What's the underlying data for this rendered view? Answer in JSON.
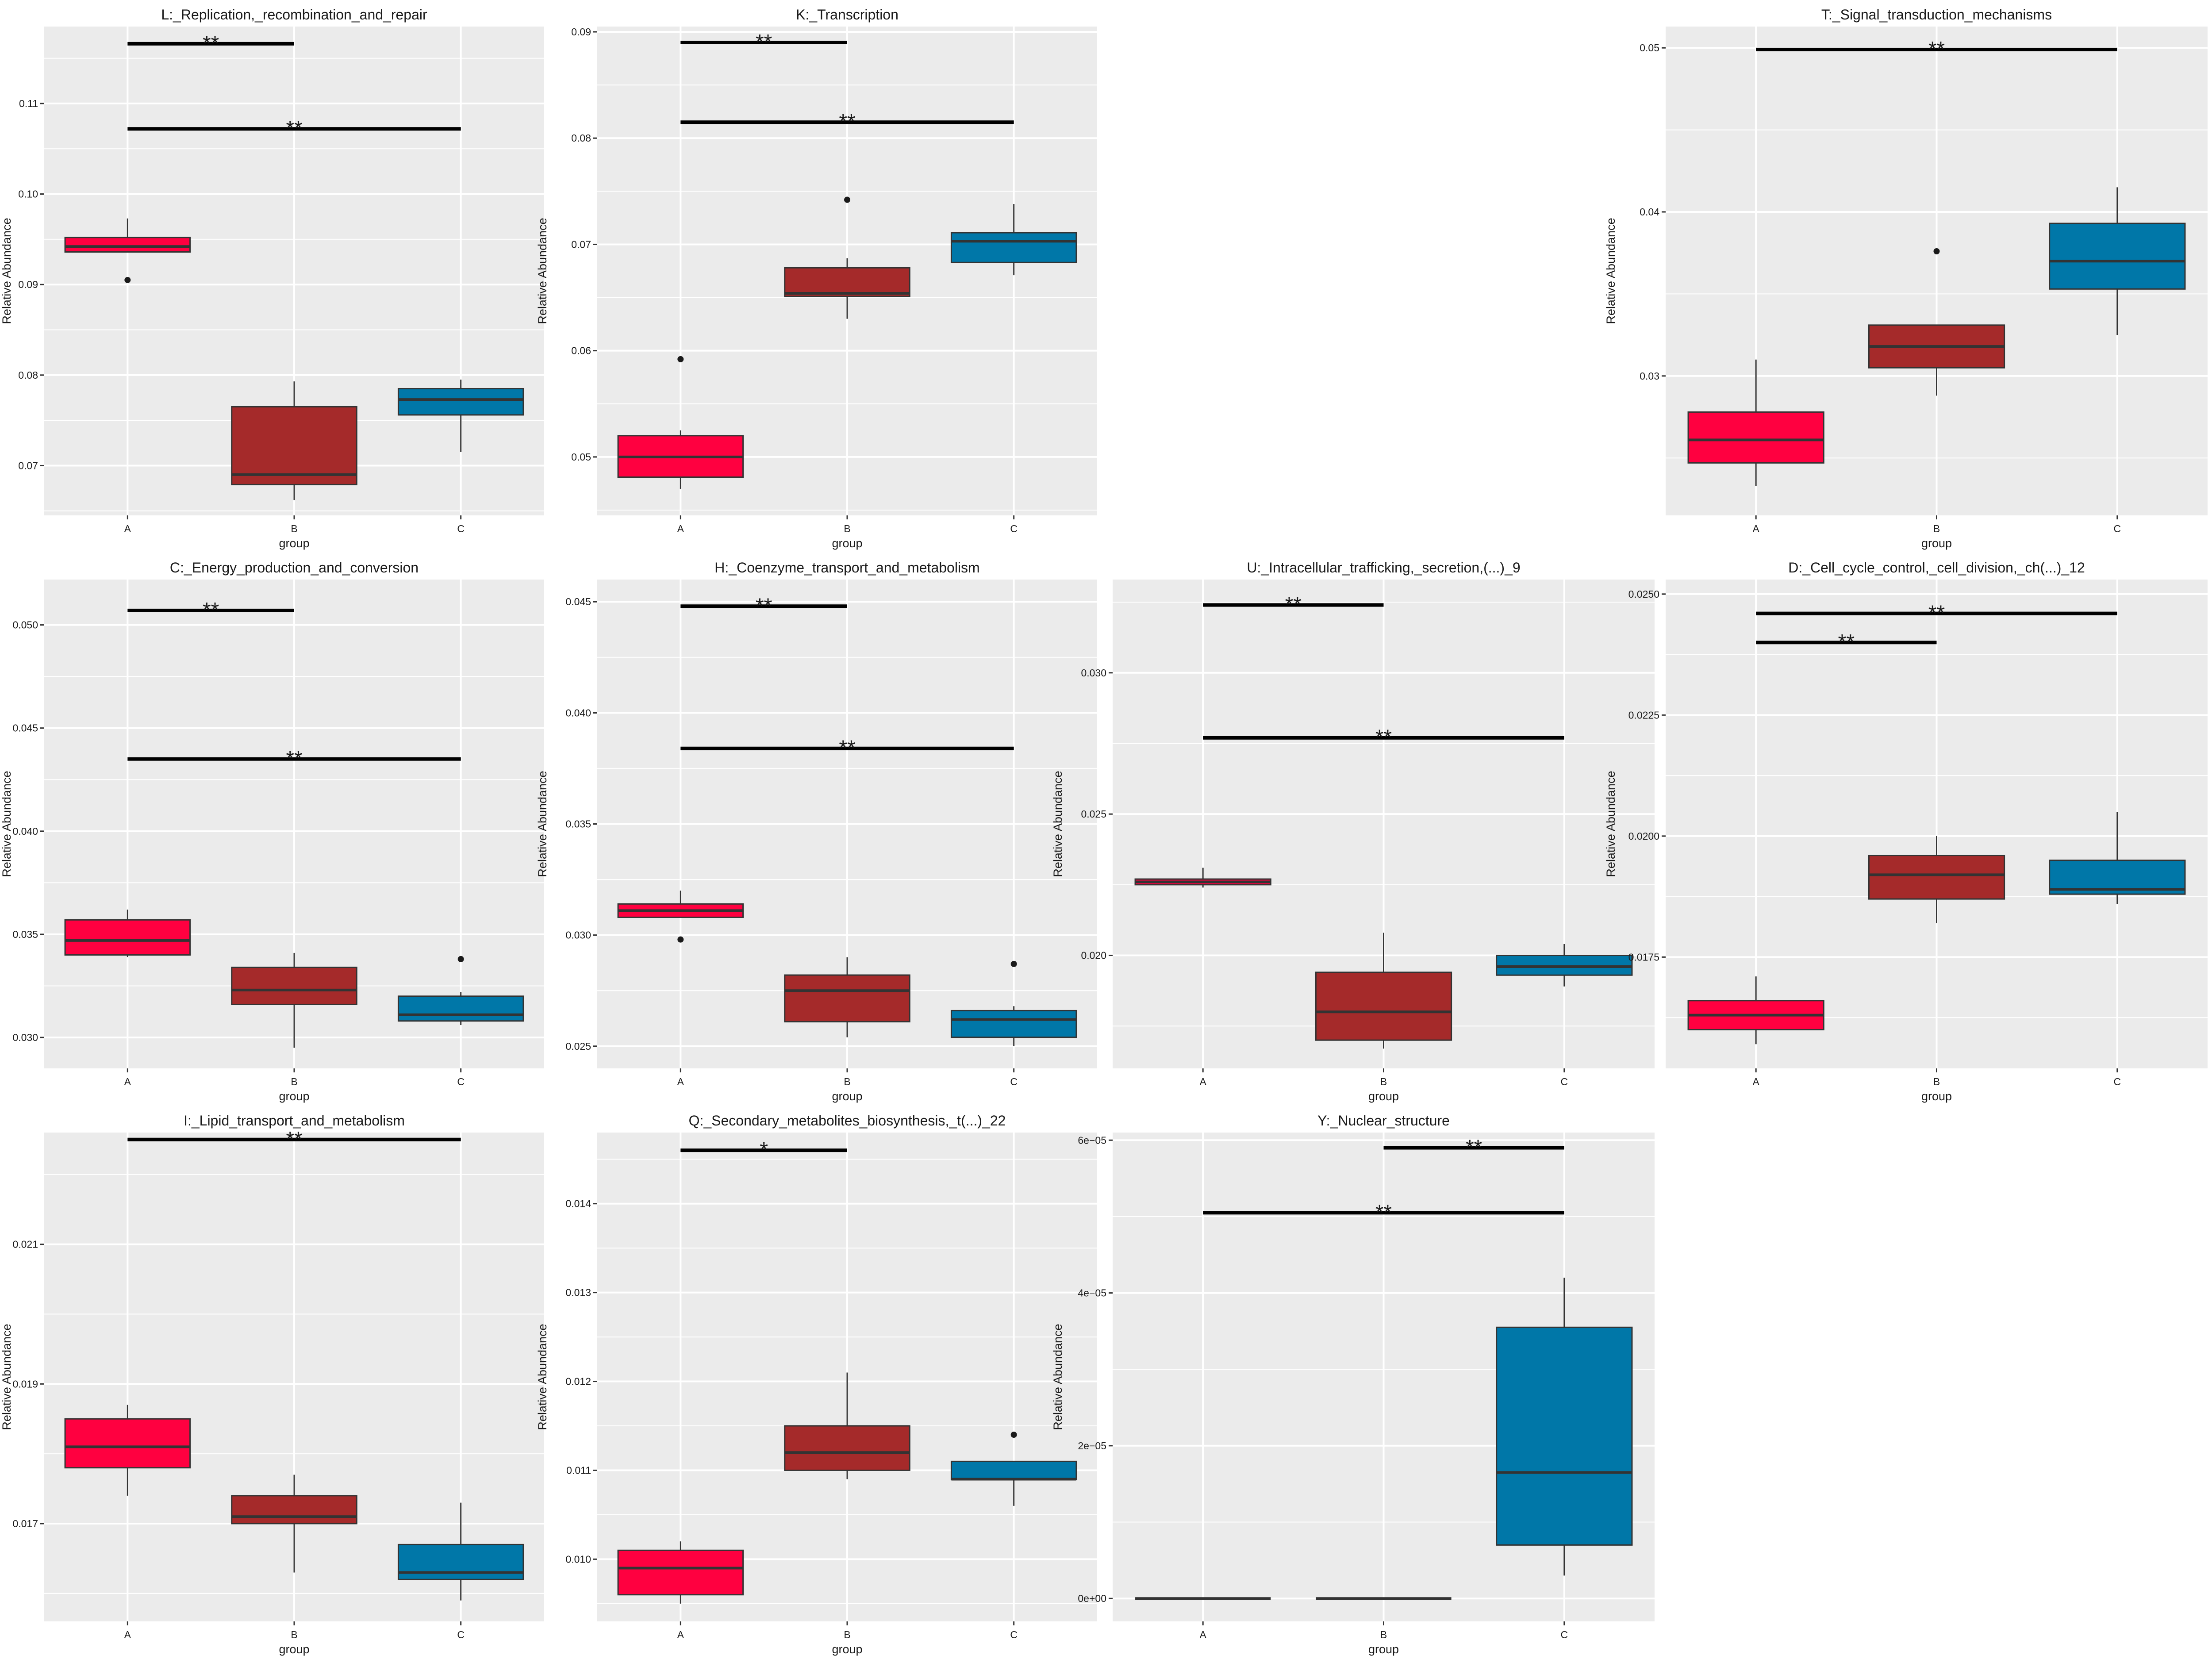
{
  "colors": {
    "A": "#ff0040",
    "B": "#a52a2a",
    "C": "#0077a8",
    "panel_bg": "#ebebeb",
    "grid": "#ffffff",
    "line": "#333333"
  },
  "chart_data": [
    {
      "type": "box",
      "title": "L:_Replication,_recombination_and_repair",
      "xlabel": "group",
      "ylabel": "Relative Abundance",
      "categories": [
        "A",
        "B",
        "C"
      ],
      "ylim": [
        0.0645,
        0.1185
      ],
      "yticks": [
        0.07,
        0.08,
        0.09,
        0.1,
        0.11
      ],
      "ytick_labels": [
        "0.07",
        "0.08",
        "0.09",
        "0.10",
        "0.11"
      ],
      "boxes": [
        {
          "group": "A",
          "lower": 0.0936,
          "q1": 0.0936,
          "median": 0.0942,
          "q3": 0.0952,
          "upper": 0.0973,
          "outliers": [
            0.0905
          ]
        },
        {
          "group": "B",
          "lower": 0.0662,
          "q1": 0.0679,
          "median": 0.069,
          "q3": 0.0765,
          "upper": 0.0793,
          "outliers": []
        },
        {
          "group": "C",
          "lower": 0.0715,
          "q1": 0.0756,
          "median": 0.0773,
          "q3": 0.0785,
          "upper": 0.0795,
          "outliers": []
        }
      ],
      "brackets": [
        {
          "from": "A",
          "to": "B",
          "y": 0.1166,
          "label": "**"
        },
        {
          "from": "A",
          "to": "C",
          "y": 0.1072,
          "label": "**"
        }
      ]
    },
    {
      "type": "box",
      "title": "K:_Transcription",
      "xlabel": "group",
      "ylabel": "Relative Abundance",
      "categories": [
        "A",
        "B",
        "C"
      ],
      "ylim": [
        0.0445,
        0.0905
      ],
      "yticks": [
        0.05,
        0.06,
        0.07,
        0.08,
        0.09
      ],
      "ytick_labels": [
        "0.05",
        "0.06",
        "0.07",
        "0.08",
        "0.09"
      ],
      "boxes": [
        {
          "group": "A",
          "lower": 0.047,
          "q1": 0.0481,
          "median": 0.05,
          "q3": 0.052,
          "upper": 0.0525,
          "outliers": [
            0.0592
          ]
        },
        {
          "group": "B",
          "lower": 0.063,
          "q1": 0.0651,
          "median": 0.0654,
          "q3": 0.0678,
          "upper": 0.0687,
          "outliers": [
            0.0742
          ]
        },
        {
          "group": "C",
          "lower": 0.0671,
          "q1": 0.0683,
          "median": 0.0703,
          "q3": 0.0711,
          "upper": 0.0738,
          "outliers": []
        }
      ],
      "brackets": [
        {
          "from": "A",
          "to": "B",
          "y": 0.089,
          "label": "**"
        },
        {
          "from": "A",
          "to": "C",
          "y": 0.0815,
          "label": "**"
        }
      ]
    },
    {
      "type": "box",
      "title": "T:_Signal_transduction_mechanisms",
      "xlabel": "group",
      "ylabel": "Relative Abundance",
      "categories": [
        "A",
        "B",
        "C"
      ],
      "ylim": [
        0.0215,
        0.0513
      ],
      "yticks": [
        0.03,
        0.04,
        0.05
      ],
      "ytick_labels": [
        "0.03",
        "0.04",
        "0.05"
      ],
      "boxes": [
        {
          "group": "A",
          "lower": 0.0233,
          "q1": 0.0247,
          "median": 0.0261,
          "q3": 0.0278,
          "upper": 0.031,
          "outliers": []
        },
        {
          "group": "B",
          "lower": 0.0288,
          "q1": 0.0305,
          "median": 0.0318,
          "q3": 0.0331,
          "upper": 0.0331,
          "outliers": [
            0.0376
          ]
        },
        {
          "group": "C",
          "lower": 0.0325,
          "q1": 0.0353,
          "median": 0.037,
          "q3": 0.0393,
          "upper": 0.0415,
          "outliers": []
        }
      ],
      "brackets": [
        {
          "from": "A",
          "to": "C",
          "y": 0.0499,
          "label": "**"
        }
      ]
    },
    {
      "type": "box",
      "title": "C:_Energy_production_and_conversion",
      "xlabel": "group",
      "ylabel": "Relative Abundance",
      "categories": [
        "A",
        "B",
        "C"
      ],
      "ylim": [
        0.0285,
        0.0522
      ],
      "yticks": [
        0.03,
        0.035,
        0.04,
        0.045,
        0.05
      ],
      "ytick_labels": [
        "0.030",
        "0.035",
        "0.040",
        "0.045",
        "0.050"
      ],
      "boxes": [
        {
          "group": "A",
          "lower": 0.0339,
          "q1": 0.034,
          "median": 0.0347,
          "q3": 0.0357,
          "upper": 0.0362,
          "outliers": []
        },
        {
          "group": "B",
          "lower": 0.0295,
          "q1": 0.0316,
          "median": 0.0323,
          "q3": 0.0334,
          "upper": 0.0341,
          "outliers": []
        },
        {
          "group": "C",
          "lower": 0.0306,
          "q1": 0.0308,
          "median": 0.0311,
          "q3": 0.032,
          "upper": 0.0322,
          "outliers": [
            0.0338
          ]
        }
      ],
      "brackets": [
        {
          "from": "A",
          "to": "B",
          "y": 0.0507,
          "label": "**"
        },
        {
          "from": "A",
          "to": "C",
          "y": 0.0435,
          "label": "**"
        }
      ]
    },
    {
      "type": "box",
      "title": "H:_Coenzyme_transport_and_metabolism",
      "xlabel": "group",
      "ylabel": "Relative Abundance",
      "categories": [
        "A",
        "B",
        "C"
      ],
      "ylim": [
        0.024,
        0.046
      ],
      "yticks": [
        0.025,
        0.03,
        0.035,
        0.04,
        0.045
      ],
      "ytick_labels": [
        "0.025",
        "0.030",
        "0.035",
        "0.040",
        "0.045"
      ],
      "boxes": [
        {
          "group": "A",
          "lower": 0.0308,
          "q1": 0.0308,
          "median": 0.0311,
          "q3": 0.0314,
          "upper": 0.032,
          "outliers": [
            0.0298
          ]
        },
        {
          "group": "B",
          "lower": 0.0254,
          "q1": 0.0261,
          "median": 0.0275,
          "q3": 0.0282,
          "upper": 0.029,
          "outliers": []
        },
        {
          "group": "C",
          "lower": 0.025,
          "q1": 0.0254,
          "median": 0.0262,
          "q3": 0.0266,
          "upper": 0.0268,
          "outliers": [
            0.0287
          ]
        }
      ],
      "brackets": [
        {
          "from": "A",
          "to": "B",
          "y": 0.0448,
          "label": "**"
        },
        {
          "from": "A",
          "to": "C",
          "y": 0.0384,
          "label": "**"
        }
      ]
    },
    {
      "type": "box",
      "title": "U:_Intracellular_trafficking,_secretion,(...)_9",
      "xlabel": "group",
      "ylabel": "Relative Abundance",
      "categories": [
        "A",
        "B",
        "C"
      ],
      "ylim": [
        0.016,
        0.0333
      ],
      "yticks": [
        0.02,
        0.025,
        0.03
      ],
      "ytick_labels": [
        "0.020",
        "0.025",
        "0.030"
      ],
      "boxes": [
        {
          "group": "A",
          "lower": 0.0224,
          "q1": 0.0225,
          "median": 0.0226,
          "q3": 0.0227,
          "upper": 0.0231,
          "outliers": []
        },
        {
          "group": "B",
          "lower": 0.0167,
          "q1": 0.017,
          "median": 0.018,
          "q3": 0.0194,
          "upper": 0.0208,
          "outliers": []
        },
        {
          "group": "C",
          "lower": 0.0189,
          "q1": 0.0193,
          "median": 0.0196,
          "q3": 0.02,
          "upper": 0.0204,
          "outliers": []
        }
      ],
      "brackets": [
        {
          "from": "A",
          "to": "B",
          "y": 0.0324,
          "label": "**"
        },
        {
          "from": "A",
          "to": "C",
          "y": 0.0277,
          "label": "**"
        }
      ]
    },
    {
      "type": "box",
      "title": "D:_Cell_cycle_control,_cell_division,_ch(...)_12",
      "xlabel": "group",
      "ylabel": "Relative Abundance",
      "categories": [
        "A",
        "B",
        "C"
      ],
      "ylim": [
        0.0152,
        0.0253
      ],
      "yticks": [
        0.0175,
        0.02,
        0.0225,
        0.025
      ],
      "ytick_labels": [
        "0.0175",
        "0.0200",
        "0.0225",
        "0.0250"
      ],
      "boxes": [
        {
          "group": "A",
          "lower": 0.0157,
          "q1": 0.016,
          "median": 0.0163,
          "q3": 0.0166,
          "upper": 0.0171,
          "outliers": []
        },
        {
          "group": "B",
          "lower": 0.0182,
          "q1": 0.0187,
          "median": 0.0192,
          "q3": 0.0196,
          "upper": 0.02,
          "outliers": []
        },
        {
          "group": "C",
          "lower": 0.0186,
          "q1": 0.0188,
          "median": 0.0189,
          "q3": 0.0195,
          "upper": 0.0205,
          "outliers": []
        }
      ],
      "brackets": [
        {
          "from": "A",
          "to": "C",
          "y": 0.0246,
          "label": "**"
        },
        {
          "from": "A",
          "to": "B",
          "y": 0.024,
          "label": "**"
        }
      ]
    },
    {
      "type": "box",
      "title": "I:_Lipid_transport_and_metabolism",
      "xlabel": "group",
      "ylabel": "Relative Abundance",
      "categories": [
        "A",
        "B",
        "C"
      ],
      "ylim": [
        0.0156,
        0.0226
      ],
      "yticks": [
        0.017,
        0.019,
        0.021
      ],
      "ytick_labels": [
        "0.017",
        "0.019",
        "0.021"
      ],
      "boxes": [
        {
          "group": "A",
          "lower": 0.0174,
          "q1": 0.0178,
          "median": 0.0181,
          "q3": 0.0185,
          "upper": 0.0187,
          "outliers": []
        },
        {
          "group": "B",
          "lower": 0.0163,
          "q1": 0.017,
          "median": 0.0171,
          "q3": 0.0174,
          "upper": 0.0177,
          "outliers": []
        },
        {
          "group": "C",
          "lower": 0.0159,
          "q1": 0.0162,
          "median": 0.0163,
          "q3": 0.0167,
          "upper": 0.0173,
          "outliers": []
        }
      ],
      "brackets": [
        {
          "from": "A",
          "to": "C",
          "y": 0.0225,
          "label": "**"
        }
      ]
    },
    {
      "type": "box",
      "title": "Q:_Secondary_metabolites_biosynthesis,_t(...)_22",
      "xlabel": "group",
      "ylabel": "Relative Abundance",
      "categories": [
        "A",
        "B",
        "C"
      ],
      "ylim": [
        0.0093,
        0.0148
      ],
      "yticks": [
        0.01,
        0.011,
        0.012,
        0.013,
        0.014
      ],
      "ytick_labels": [
        "0.010",
        "0.011",
        "0.012",
        "0.013",
        "0.014"
      ],
      "boxes": [
        {
          "group": "A",
          "lower": 0.0095,
          "q1": 0.0096,
          "median": 0.0099,
          "q3": 0.0101,
          "upper": 0.0102,
          "outliers": []
        },
        {
          "group": "B",
          "lower": 0.0109,
          "q1": 0.011,
          "median": 0.0112,
          "q3": 0.0115,
          "upper": 0.0121,
          "outliers": []
        },
        {
          "group": "C",
          "lower": 0.0106,
          "q1": 0.0109,
          "median": 0.0109,
          "q3": 0.0111,
          "upper": 0.0111,
          "outliers": [
            0.0114
          ]
        }
      ],
      "brackets": [
        {
          "from": "A",
          "to": "B",
          "y": 0.0146,
          "label": "*"
        }
      ]
    },
    {
      "type": "box",
      "title": "Y:_Nuclear_structure",
      "xlabel": "group",
      "ylabel": "Relative Abundance",
      "categories": [
        "A",
        "B",
        "C"
      ],
      "ylim": [
        -3e-06,
        6.1e-05
      ],
      "yticks": [
        0,
        2e-05,
        4e-05,
        6e-05
      ],
      "ytick_labels": [
        "0e+00",
        "2e−05",
        "4e−05",
        "6e−05"
      ],
      "boxes": [
        {
          "group": "A",
          "lower": 0,
          "q1": 0,
          "median": 0,
          "q3": 0,
          "upper": 0,
          "outliers": []
        },
        {
          "group": "B",
          "lower": 0,
          "q1": 0,
          "median": 0,
          "q3": 0,
          "upper": 0,
          "outliers": []
        },
        {
          "group": "C",
          "lower": 3e-06,
          "q1": 7e-06,
          "median": 1.65e-05,
          "q3": 3.55e-05,
          "upper": 4.2e-05,
          "outliers": []
        }
      ],
      "brackets": [
        {
          "from": "B",
          "to": "C",
          "y": 5.9e-05,
          "label": "**"
        },
        {
          "from": "A",
          "to": "C",
          "y": 5.05e-05,
          "label": "**"
        }
      ]
    }
  ]
}
